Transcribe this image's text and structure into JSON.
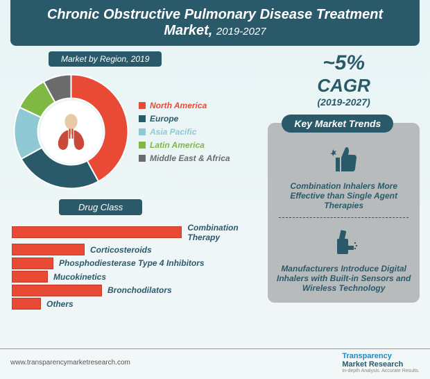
{
  "header": {
    "title": "Chronic Obstructive Pulmonary Disease Treatment Market,",
    "year": "2019-2027"
  },
  "region_chart": {
    "label": "Market by Region, 2019",
    "type": "donut",
    "segments": [
      {
        "label": "North America",
        "value": 42,
        "color": "#e84a35"
      },
      {
        "label": "Europe",
        "value": 25,
        "color": "#2a5a6a"
      },
      {
        "label": "Asia Pacific",
        "value": 15,
        "color": "#8ec9d4"
      },
      {
        "label": "Latin America",
        "value": 10,
        "color": "#7fb843"
      },
      {
        "label": "Middle East & Africa",
        "value": 8,
        "color": "#6b6b6b"
      }
    ]
  },
  "cagr": {
    "pct": "~5%",
    "label": "CAGR",
    "years": "(2019-2027)"
  },
  "trends": {
    "label": "Key Market Trends",
    "items": [
      {
        "icon": "thumbs-up-icon",
        "text": "Combination Inhalers More Effective than Single Agent Therapies"
      },
      {
        "icon": "inhaler-icon",
        "text": "Manufacturers Introduce Digital Inhalers with Built-in Sensors and Wireless Technology"
      }
    ]
  },
  "drug_class": {
    "label": "Drug Class",
    "type": "bar",
    "bar_color": "#e84a35",
    "max_width": 280,
    "bars": [
      {
        "label": "Combination Therapy",
        "value": 280
      },
      {
        "label": "Corticosteroids",
        "value": 105
      },
      {
        "label": "Phosphodiesterase Type 4 Inhibitors",
        "value": 60
      },
      {
        "label": "Mucokinetics",
        "value": 52
      },
      {
        "label": "Bronchodilators",
        "value": 130
      },
      {
        "label": "Others",
        "value": 42
      }
    ]
  },
  "footer": {
    "url": "www.transparencymarketresearch.com",
    "logo1": "Transparency",
    "logo2": "Market Research",
    "tag": "In-depth Analysis. Accurate Results."
  }
}
